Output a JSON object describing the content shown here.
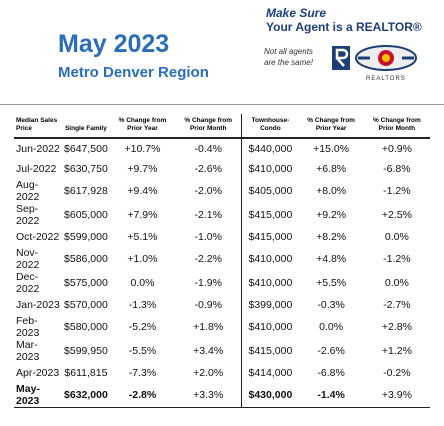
{
  "header": {
    "title": "May 2023",
    "subtitle": "Metro Denver Region"
  },
  "logo": {
    "line1": "Make Sure",
    "line2": "Your Agent is a REALTOR®",
    "tagline": "Not all agents are the same!",
    "mark": "REALTORS"
  },
  "table": {
    "columns": [
      "Median Sales Price",
      "Single Family",
      "% Change from Prior Year",
      "% Change from Prior Month",
      "Townhouse-Condo",
      "% Change from Prior Year",
      "% Change from Prior Month"
    ],
    "rows": [
      [
        "Jun-2022",
        "$647,500",
        "+10.7%",
        "-0.4%",
        "$440,000",
        "+15.0%",
        "+0.9%"
      ],
      [
        "Jul-2022",
        "$630,750",
        "+9.7%",
        "-2.6%",
        "$410,000",
        "+6.8%",
        "-6.8%"
      ],
      [
        "Aug-2022",
        "$617,928",
        "+9.4%",
        "-2.0%",
        "$405,000",
        "+8.0%",
        "-1.2%"
      ],
      [
        "Sep-2022",
        "$605,000",
        "+7.9%",
        "-2.1%",
        "$415,000",
        "+9.2%",
        "+2.5%"
      ],
      [
        "Oct-2022",
        "$599,000",
        "+5.1%",
        "-1.0%",
        "$415,000",
        "+8.2%",
        "0.0%"
      ],
      [
        "Nov-2022",
        "$586,000",
        "+1.0%",
        "-2.2%",
        "$410,000",
        "+4.8%",
        "-1.2%"
      ],
      [
        "Dec-2022",
        "$575,000",
        "0.0%",
        "-1.9%",
        "$410,000",
        "+5.5%",
        "0.0%"
      ],
      [
        "Jan-2023",
        "$570,000",
        "-1.3%",
        "-0.9%",
        "$399,000",
        "-0.3%",
        "-2.7%"
      ],
      [
        "Feb-2023",
        "$580,000",
        "-5.2%",
        "+1.8%",
        "$410,000",
        "0.0%",
        "+2.8%"
      ],
      [
        "Mar-2023",
        "$599,950",
        "-5.5%",
        "+3.4%",
        "$415,000",
        "-2.6%",
        "+1.2%"
      ],
      [
        "Apr-2023",
        "$611,815",
        "-7.3%",
        "+2.0%",
        "$414,000",
        "-6.8%",
        "-0.2%"
      ],
      [
        "May-2023",
        "$632,000",
        "-2.8%",
        "+3.3%",
        "$430,000",
        "-1.4%",
        "+3.9%"
      ]
    ]
  }
}
